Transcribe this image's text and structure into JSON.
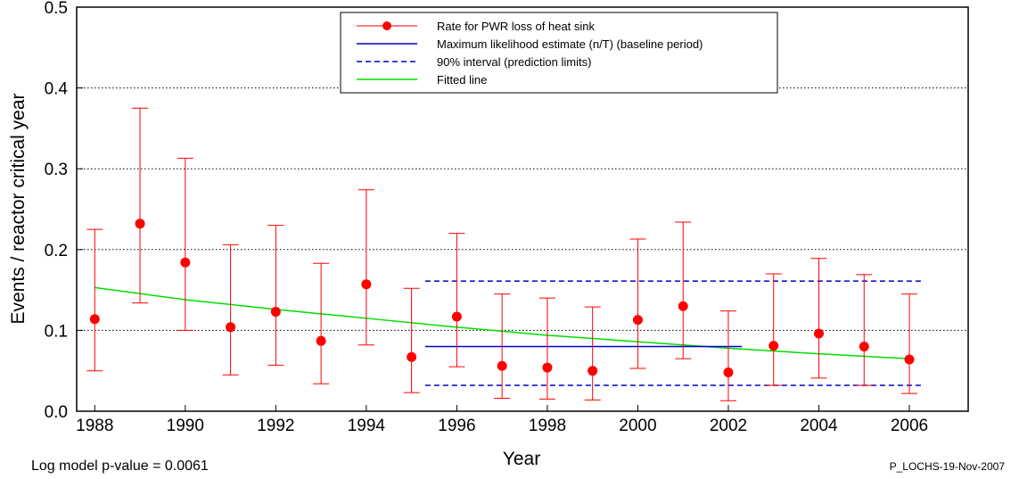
{
  "chart_data": {
    "type": "scatter",
    "title": "",
    "xlabel": "Year",
    "ylabel": "Events / reactor critical year",
    "xlim": [
      1987.6,
      2007.3
    ],
    "ylim": [
      0.0,
      0.5
    ],
    "x_ticks": [
      "1988",
      "1990",
      "1992",
      "1994",
      "1996",
      "1998",
      "2000",
      "2002",
      "2004",
      "2006"
    ],
    "y_ticks": [
      "0.0",
      "0.1",
      "0.2",
      "0.3",
      "0.4",
      "0.5"
    ],
    "grid": "horizontal dotted",
    "legend_position": "top-center",
    "legend": [
      "Rate for PWR loss of heat sink",
      "Maximum likelihood estimate (n/T) (baseline period)",
      "90% interval (prediction limits)",
      "Fitted line"
    ],
    "series": [
      {
        "name": "Rate for PWR loss of heat sink",
        "color": "#ff0000",
        "points": [
          {
            "x": 1988,
            "y": 0.114,
            "lo": 0.05,
            "hi": 0.225
          },
          {
            "x": 1989,
            "y": 0.232,
            "lo": 0.134,
            "hi": 0.375
          },
          {
            "x": 1990,
            "y": 0.184,
            "lo": 0.1,
            "hi": 0.313
          },
          {
            "x": 1991,
            "y": 0.104,
            "lo": 0.045,
            "hi": 0.206
          },
          {
            "x": 1992,
            "y": 0.123,
            "lo": 0.057,
            "hi": 0.23
          },
          {
            "x": 1993,
            "y": 0.087,
            "lo": 0.034,
            "hi": 0.183
          },
          {
            "x": 1994,
            "y": 0.157,
            "lo": 0.082,
            "hi": 0.274
          },
          {
            "x": 1995,
            "y": 0.067,
            "lo": 0.023,
            "hi": 0.152
          },
          {
            "x": 1996,
            "y": 0.117,
            "lo": 0.055,
            "hi": 0.22
          },
          {
            "x": 1997,
            "y": 0.056,
            "lo": 0.016,
            "hi": 0.145
          },
          {
            "x": 1998,
            "y": 0.054,
            "lo": 0.015,
            "hi": 0.14
          },
          {
            "x": 1999,
            "y": 0.05,
            "lo": 0.014,
            "hi": 0.129
          },
          {
            "x": 2000,
            "y": 0.113,
            "lo": 0.053,
            "hi": 0.213
          },
          {
            "x": 2001,
            "y": 0.13,
            "lo": 0.065,
            "hi": 0.234
          },
          {
            "x": 2002,
            "y": 0.048,
            "lo": 0.013,
            "hi": 0.124
          },
          {
            "x": 2003,
            "y": 0.081,
            "lo": 0.032,
            "hi": 0.17
          },
          {
            "x": 2004,
            "y": 0.096,
            "lo": 0.041,
            "hi": 0.189
          },
          {
            "x": 2005,
            "y": 0.08,
            "lo": 0.032,
            "hi": 0.169
          },
          {
            "x": 2006,
            "y": 0.064,
            "lo": 0.022,
            "hi": 0.145
          }
        ]
      },
      {
        "name": "Maximum likelihood estimate (n/T) (baseline period)",
        "color": "#0000cc",
        "style": "solid",
        "x": [
          1995.3,
          2002.3
        ],
        "y": [
          0.08,
          0.08
        ]
      },
      {
        "name": "90% interval (prediction limits)",
        "color": "#0000cc",
        "style": "dashed",
        "upper": {
          "x": [
            1995.3,
            2006.3
          ],
          "y": [
            0.161,
            0.161
          ]
        },
        "lower": {
          "x": [
            1995.3,
            2006.3
          ],
          "y": [
            0.032,
            0.032
          ]
        }
      },
      {
        "name": "Fitted line",
        "color": "#00dd00",
        "style": "solid",
        "x": [
          1988,
          1990,
          1992,
          1994,
          1996,
          1998,
          2000,
          2002,
          2004,
          2006
        ],
        "y": [
          0.153,
          0.138,
          0.126,
          0.115,
          0.104,
          0.094,
          0.086,
          0.078,
          0.071,
          0.065
        ]
      }
    ]
  },
  "footer": {
    "pvalue": "Log model p-value = 0.0061",
    "stamp": "P_LOCHS-19-Nov-2007"
  }
}
